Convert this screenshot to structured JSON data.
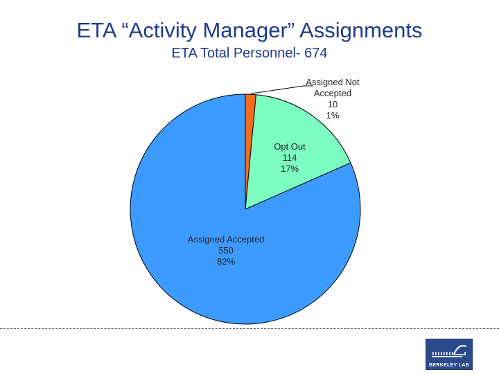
{
  "title": "ETA “Activity Manager” Assignments",
  "subtitle": "ETA Total Personnel- 674",
  "colors": {
    "title": "#1f3a8a",
    "slices": [
      "#f26c1c",
      "#7dfcc2",
      "#3d9bff"
    ],
    "logo": "#2b4a8c"
  },
  "chart_data": {
    "type": "pie",
    "start": "top",
    "direction": "clockwise",
    "slices": [
      {
        "name": "Assigned Not Accepted",
        "lines": [
          "Assigned Not",
          "Accepted"
        ],
        "value": 10,
        "percent": "1%"
      },
      {
        "name": "Opt Out",
        "lines": [
          "Opt Out"
        ],
        "value": 114,
        "percent": "17%"
      },
      {
        "name": "Assigned Accepted",
        "lines": [
          "Assigned Accepted"
        ],
        "value": 550,
        "percent": "82%"
      }
    ]
  },
  "logo": {
    "text": "BERKELEY LAB",
    "icon": "berkeley-lab-logo-icon"
  }
}
